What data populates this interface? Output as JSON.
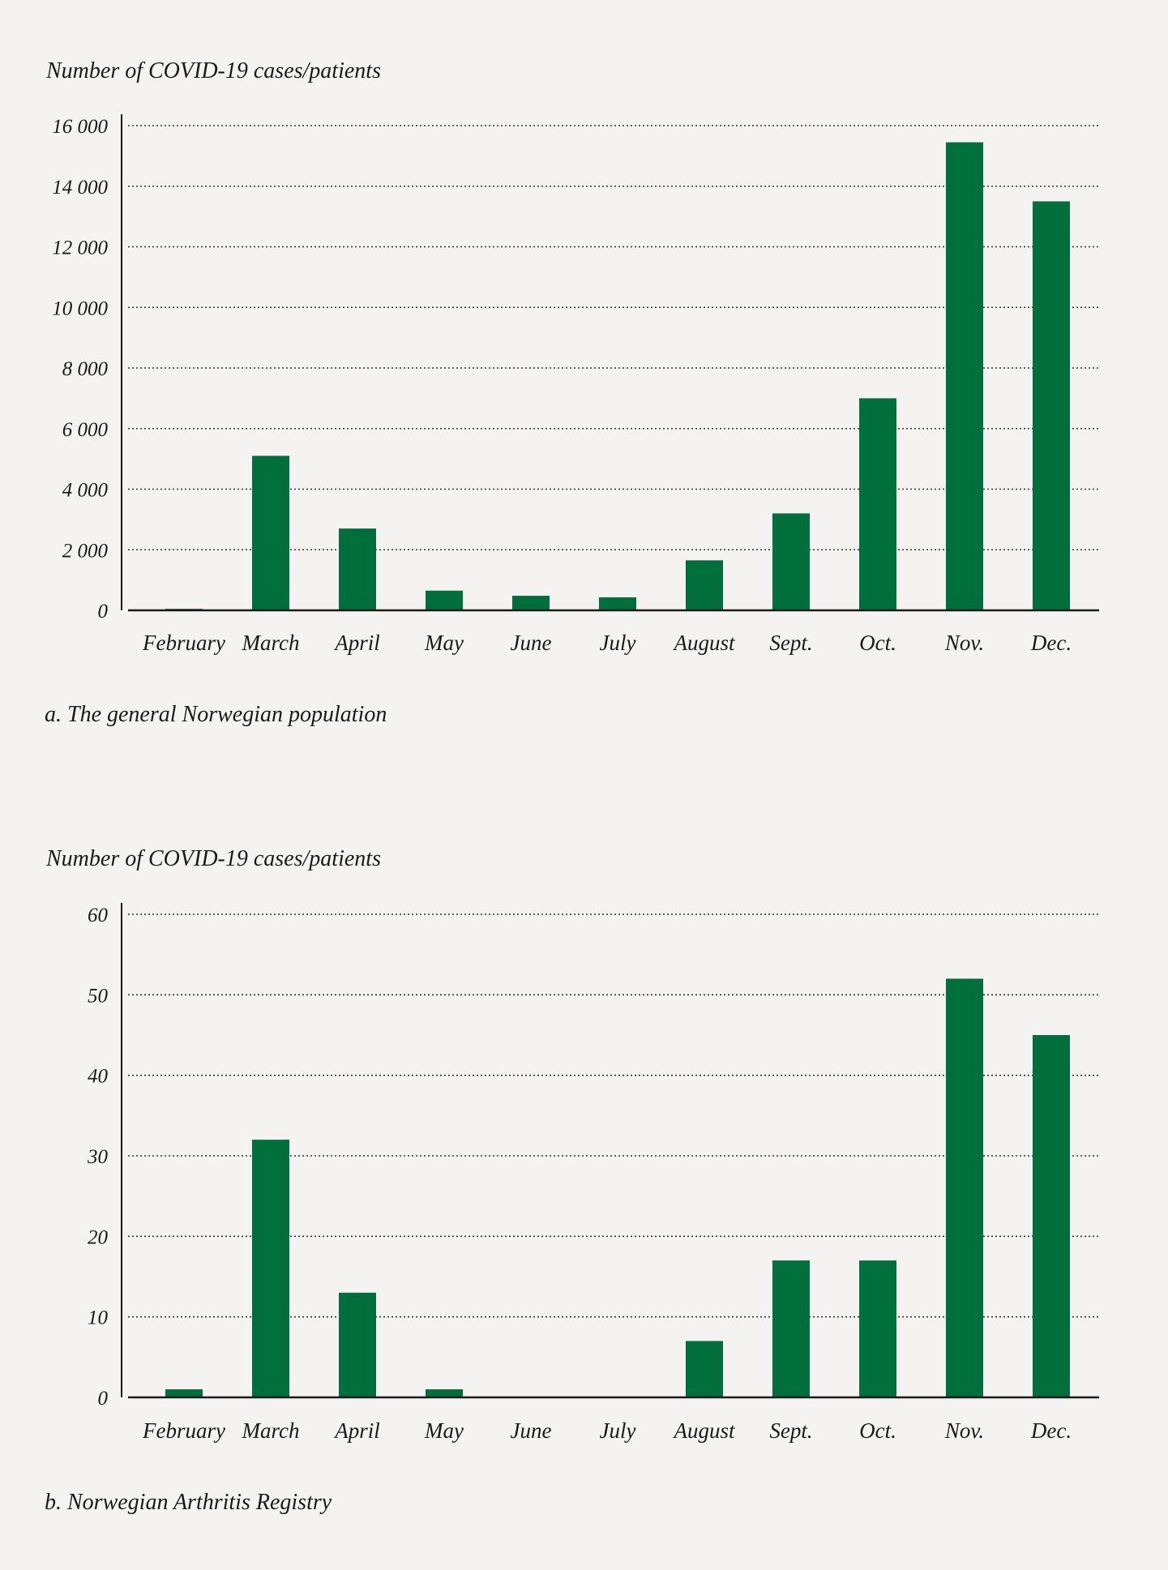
{
  "colors": {
    "background": "#f4f3f1",
    "bar": "#006f3c",
    "axis": "#1a1a1a",
    "grid": "#333333"
  },
  "chart_data": [
    {
      "type": "bar",
      "ylabel": "Number of COVID-19 cases/patients",
      "caption": "a. The general Norwegian population",
      "categories": [
        "February",
        "March",
        "April",
        "May",
        "June",
        "July",
        "August",
        "Sept.",
        "Oct.",
        "Nov.",
        "Dec."
      ],
      "values": [
        50,
        5100,
        2700,
        650,
        480,
        430,
        1650,
        3200,
        7000,
        15450,
        13500
      ],
      "ylim": [
        0,
        16000
      ],
      "yticks": [
        0,
        2000,
        4000,
        6000,
        8000,
        10000,
        12000,
        14000,
        16000
      ],
      "ytick_labels": [
        "0",
        "2 000",
        "4 000",
        "6 000",
        "8 000",
        "10 000",
        "12 000",
        "14 000",
        "16 000"
      ],
      "grid": "horizontal dotted"
    },
    {
      "type": "bar",
      "ylabel": "Number of COVID-19 cases/patients",
      "caption": "b. Norwegian Arthritis Registry",
      "categories": [
        "February",
        "March",
        "April",
        "May",
        "June",
        "July",
        "August",
        "Sept.",
        "Oct.",
        "Nov.",
        "Dec."
      ],
      "values": [
        1,
        32,
        13,
        1,
        0,
        0,
        7,
        17,
        17,
        52,
        45
      ],
      "ylim": [
        0,
        60
      ],
      "yticks": [
        0,
        10,
        20,
        30,
        40,
        50,
        60
      ],
      "ytick_labels": [
        "0",
        "10",
        "20",
        "30",
        "40",
        "50",
        "60"
      ],
      "grid": "horizontal dotted"
    }
  ]
}
